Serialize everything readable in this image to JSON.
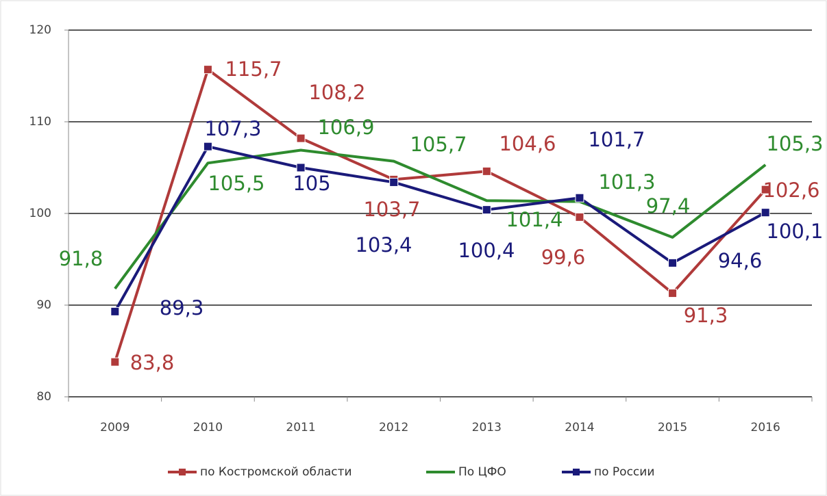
{
  "chart_data": {
    "type": "line",
    "categories": [
      "2009",
      "2010",
      "2011",
      "2012",
      "2013",
      "2014",
      "2015",
      "2016"
    ],
    "ylim": [
      80,
      120
    ],
    "yticks": [
      80,
      90,
      100,
      110,
      120
    ],
    "grid": true,
    "legend": "bottom",
    "series": [
      {
        "name": "по Костромской области",
        "color": "#b03a3a",
        "marker": "square",
        "values": [
          83.8,
          115.7,
          108.2,
          103.7,
          104.6,
          99.6,
          91.3,
          102.6
        ],
        "value_labels": [
          "83,8",
          "115,7",
          "108,2",
          "103,7",
          "104,6",
          "99,6",
          "91,3",
          "102,6"
        ]
      },
      {
        "name": "По ЦФО",
        "color": "#2e8b2e",
        "marker": "none",
        "values": [
          91.8,
          105.5,
          106.9,
          105.7,
          101.4,
          101.3,
          97.4,
          105.3
        ],
        "value_labels": [
          "91,8",
          "105,5",
          "106,9",
          "105,7",
          "101,4",
          "101,3",
          "97,4",
          "105,3"
        ]
      },
      {
        "name": "по России",
        "color": "#1a1a7a",
        "marker": "square",
        "values": [
          89.3,
          107.3,
          105,
          103.4,
          100.4,
          101.7,
          94.6,
          100.1
        ],
        "value_labels": [
          "89,3",
          "107,3",
          "105",
          "103,4",
          "100,4",
          "101,7",
          "94,6",
          "100,1"
        ]
      }
    ]
  }
}
